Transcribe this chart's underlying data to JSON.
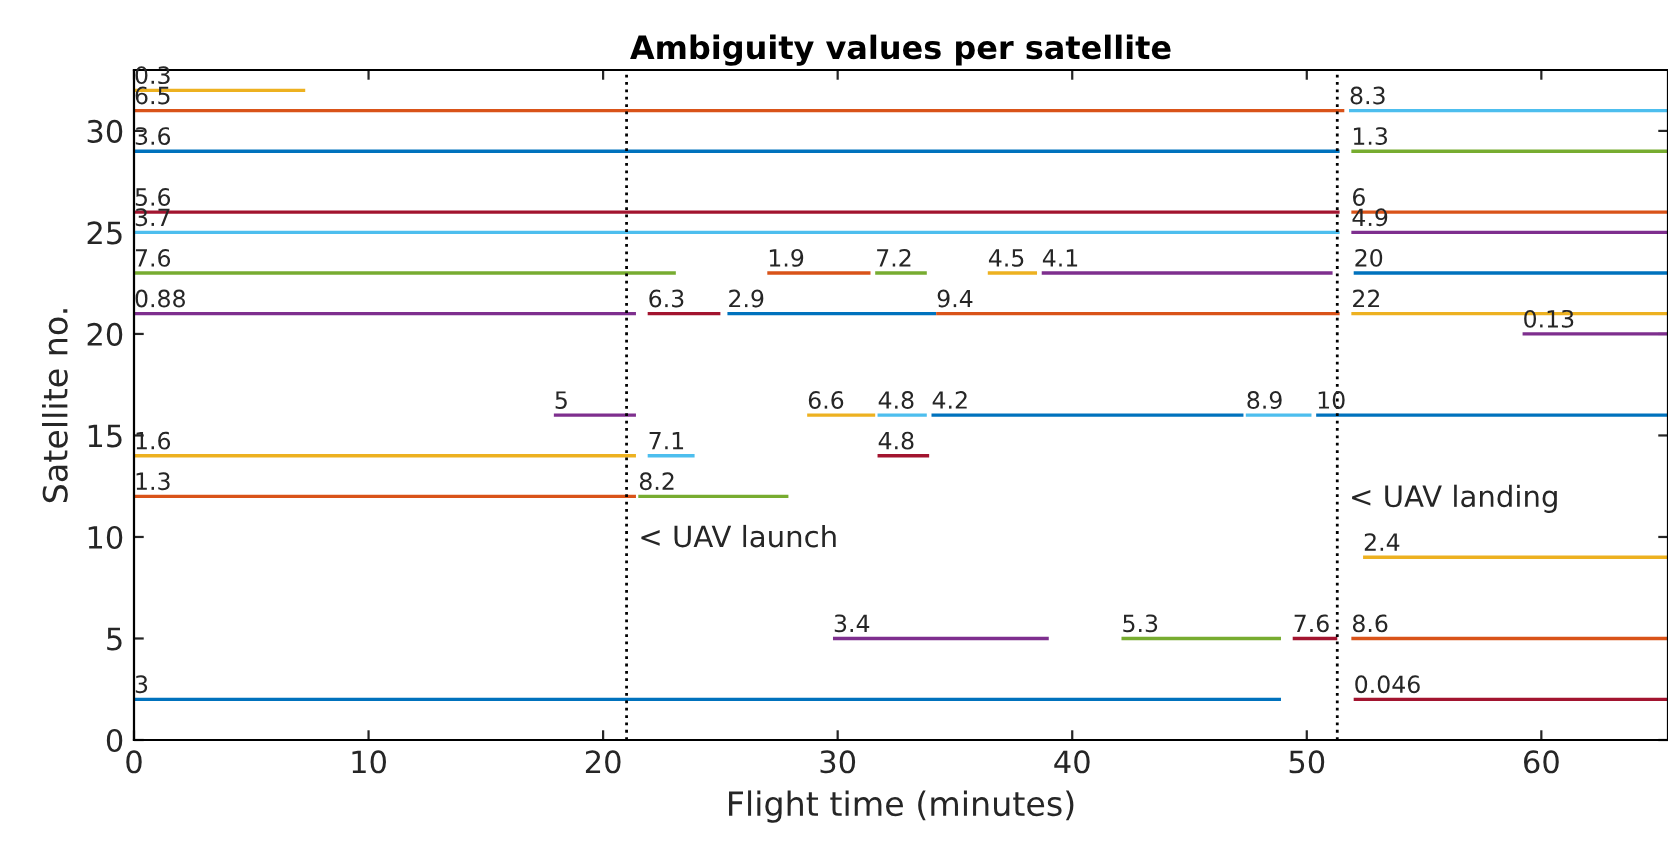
{
  "chart_data": {
    "type": "line",
    "title": "Ambiguity values per satellite",
    "xlabel": "Flight time (minutes)",
    "ylabel": "Satellite no.",
    "xlim": [
      0,
      65.4
    ],
    "xticks": [
      0,
      10,
      20,
      30,
      40,
      50,
      60
    ],
    "ylim": [
      0,
      33
    ],
    "yticks": [
      0,
      5,
      10,
      15,
      20,
      25,
      30
    ],
    "grid": false,
    "legend": false,
    "marker": "none",
    "line_style": "solid",
    "ref_lines": [
      {
        "axis": "x",
        "value": 21,
        "label": "< UAV launch",
        "line_style": "dotted",
        "color": "#000000"
      },
      {
        "axis": "x",
        "value": 51.3,
        "label": "< UAV landing",
        "line_style": "dotted",
        "color": "#000000"
      }
    ],
    "series": [
      {
        "color": "#EDB120",
        "x": [
          0,
          7.3
        ],
        "values": [
          32,
          32
        ]
      },
      {
        "color": "#D95319",
        "x": [
          0,
          51.6
        ],
        "values": [
          31,
          31
        ]
      },
      {
        "color": "#4DBEEE",
        "x": [
          51.8,
          65.4
        ],
        "values": [
          31,
          31
        ]
      },
      {
        "color": "#0072BD",
        "x": [
          0,
          51.4
        ],
        "values": [
          29,
          29
        ]
      },
      {
        "color": "#77AC30",
        "x": [
          51.9,
          65.4
        ],
        "values": [
          29,
          29
        ]
      },
      {
        "color": "#A2142F",
        "x": [
          0,
          51.4
        ],
        "values": [
          26,
          26
        ]
      },
      {
        "color": "#D95319",
        "x": [
          51.9,
          65.4
        ],
        "values": [
          26,
          26
        ]
      },
      {
        "color": "#4DBEEE",
        "x": [
          0,
          51.4
        ],
        "values": [
          25,
          25
        ]
      },
      {
        "color": "#7E2F8E",
        "x": [
          51.9,
          65.4
        ],
        "values": [
          25,
          25
        ]
      },
      {
        "color": "#77AC30",
        "x": [
          0,
          23.1
        ],
        "values": [
          23,
          23
        ]
      },
      {
        "color": "#D95319",
        "x": [
          27.0,
          31.4
        ],
        "values": [
          23,
          23
        ]
      },
      {
        "color": "#77AC30",
        "x": [
          31.6,
          33.8
        ],
        "values": [
          23,
          23
        ]
      },
      {
        "color": "#EDB120",
        "x": [
          36.4,
          38.5
        ],
        "values": [
          23,
          23
        ]
      },
      {
        "color": "#7E2F8E",
        "x": [
          38.7,
          51.1
        ],
        "values": [
          23,
          23
        ]
      },
      {
        "color": "#0072BD",
        "x": [
          52.0,
          65.4
        ],
        "values": [
          23,
          23
        ]
      },
      {
        "color": "#7E2F8E",
        "x": [
          0,
          21.4
        ],
        "values": [
          21,
          21
        ]
      },
      {
        "color": "#A2142F",
        "x": [
          21.9,
          25.0
        ],
        "values": [
          21,
          21
        ]
      },
      {
        "color": "#0072BD",
        "x": [
          25.3,
          34.2
        ],
        "values": [
          21,
          21
        ]
      },
      {
        "color": "#D95319",
        "x": [
          34.2,
          51.4
        ],
        "values": [
          21,
          21
        ]
      },
      {
        "color": "#EDB120",
        "x": [
          51.9,
          65.4
        ],
        "values": [
          21,
          21
        ]
      },
      {
        "color": "#7E2F8E",
        "x": [
          59.2,
          65.4
        ],
        "values": [
          20,
          20
        ]
      },
      {
        "color": "#7E2F8E",
        "x": [
          17.9,
          21.4
        ],
        "values": [
          16,
          16
        ]
      },
      {
        "color": "#EDB120",
        "x": [
          28.7,
          31.6
        ],
        "values": [
          16,
          16
        ]
      },
      {
        "color": "#4DBEEE",
        "x": [
          31.7,
          33.8
        ],
        "values": [
          16,
          16
        ]
      },
      {
        "color": "#0072BD",
        "x": [
          34.0,
          47.3
        ],
        "values": [
          16,
          16
        ]
      },
      {
        "color": "#4DBEEE",
        "x": [
          47.4,
          50.2
        ],
        "values": [
          16,
          16
        ]
      },
      {
        "color": "#0072BD",
        "x": [
          50.4,
          65.4
        ],
        "values": [
          16,
          16
        ]
      },
      {
        "color": "#EDB120",
        "x": [
          0,
          21.4
        ],
        "values": [
          14,
          14
        ]
      },
      {
        "color": "#4DBEEE",
        "x": [
          21.9,
          23.9
        ],
        "values": [
          14,
          14
        ]
      },
      {
        "color": "#A2142F",
        "x": [
          31.7,
          33.9
        ],
        "values": [
          14,
          14
        ]
      },
      {
        "color": "#D95319",
        "x": [
          0,
          21.4
        ],
        "values": [
          12,
          12
        ]
      },
      {
        "color": "#77AC30",
        "x": [
          21.5,
          27.9
        ],
        "values": [
          12,
          12
        ]
      },
      {
        "color": "#EDB120",
        "x": [
          52.4,
          65.4
        ],
        "values": [
          9,
          9
        ]
      },
      {
        "color": "#7E2F8E",
        "x": [
          29.8,
          39.0
        ],
        "values": [
          5,
          5
        ]
      },
      {
        "color": "#77AC30",
        "x": [
          42.1,
          48.9
        ],
        "values": [
          5,
          5
        ]
      },
      {
        "color": "#A2142F",
        "x": [
          49.4,
          51.3
        ],
        "values": [
          5,
          5
        ]
      },
      {
        "color": "#D95319",
        "x": [
          51.9,
          65.4
        ],
        "values": [
          5,
          5
        ]
      },
      {
        "color": "#0072BD",
        "x": [
          0,
          48.9
        ],
        "values": [
          2,
          2
        ]
      },
      {
        "color": "#A2142F",
        "x": [
          52.0,
          65.4
        ],
        "values": [
          2,
          2
        ]
      }
    ],
    "annotations": [
      {
        "text": "0.3",
        "x": 0,
        "y": 32
      },
      {
        "text": "6.5",
        "x": 0,
        "y": 31
      },
      {
        "text": "8.3",
        "x": 51.8,
        "y": 31
      },
      {
        "text": "3.6",
        "x": 0,
        "y": 29
      },
      {
        "text": "1.3",
        "x": 51.9,
        "y": 29
      },
      {
        "text": "5.6",
        "x": 0,
        "y": 26
      },
      {
        "text": "6",
        "x": 51.9,
        "y": 26
      },
      {
        "text": "3.7",
        "x": 0,
        "y": 25
      },
      {
        "text": "4.9",
        "x": 51.9,
        "y": 25
      },
      {
        "text": "7.6",
        "x": 0,
        "y": 23
      },
      {
        "text": "1.9",
        "x": 27.0,
        "y": 23
      },
      {
        "text": "7.2",
        "x": 31.6,
        "y": 23
      },
      {
        "text": "4.5",
        "x": 36.4,
        "y": 23
      },
      {
        "text": "4.1",
        "x": 38.7,
        "y": 23
      },
      {
        "text": "20",
        "x": 52.0,
        "y": 23
      },
      {
        "text": "0.88",
        "x": 0,
        "y": 21
      },
      {
        "text": "6.3",
        "x": 21.9,
        "y": 21
      },
      {
        "text": "2.9",
        "x": 25.3,
        "y": 21
      },
      {
        "text": "9.4",
        "x": 34.2,
        "y": 21
      },
      {
        "text": "22",
        "x": 51.9,
        "y": 21
      },
      {
        "text": "0.13",
        "x": 59.2,
        "y": 20
      },
      {
        "text": "5",
        "x": 17.9,
        "y": 16
      },
      {
        "text": "6.6",
        "x": 28.7,
        "y": 16
      },
      {
        "text": "4.8",
        "x": 31.7,
        "y": 16
      },
      {
        "text": "4.2",
        "x": 34.0,
        "y": 16
      },
      {
        "text": "8.9",
        "x": 47.4,
        "y": 16
      },
      {
        "text": "10",
        "x": 50.4,
        "y": 16
      },
      {
        "text": "1.6",
        "x": 0,
        "y": 14
      },
      {
        "text": "7.1",
        "x": 21.9,
        "y": 14
      },
      {
        "text": "4.8",
        "x": 31.7,
        "y": 14
      },
      {
        "text": "1.3",
        "x": 0,
        "y": 12
      },
      {
        "text": "8.2",
        "x": 21.5,
        "y": 12
      },
      {
        "text": "2.4",
        "x": 52.4,
        "y": 9
      },
      {
        "text": "3.4",
        "x": 29.8,
        "y": 5
      },
      {
        "text": "5.3",
        "x": 42.1,
        "y": 5
      },
      {
        "text": "7.6",
        "x": 49.4,
        "y": 5
      },
      {
        "text": "8.6",
        "x": 51.9,
        "y": 5
      },
      {
        "text": "3",
        "x": 0,
        "y": 2
      },
      {
        "text": "0.046",
        "x": 52.0,
        "y": 2
      }
    ]
  }
}
